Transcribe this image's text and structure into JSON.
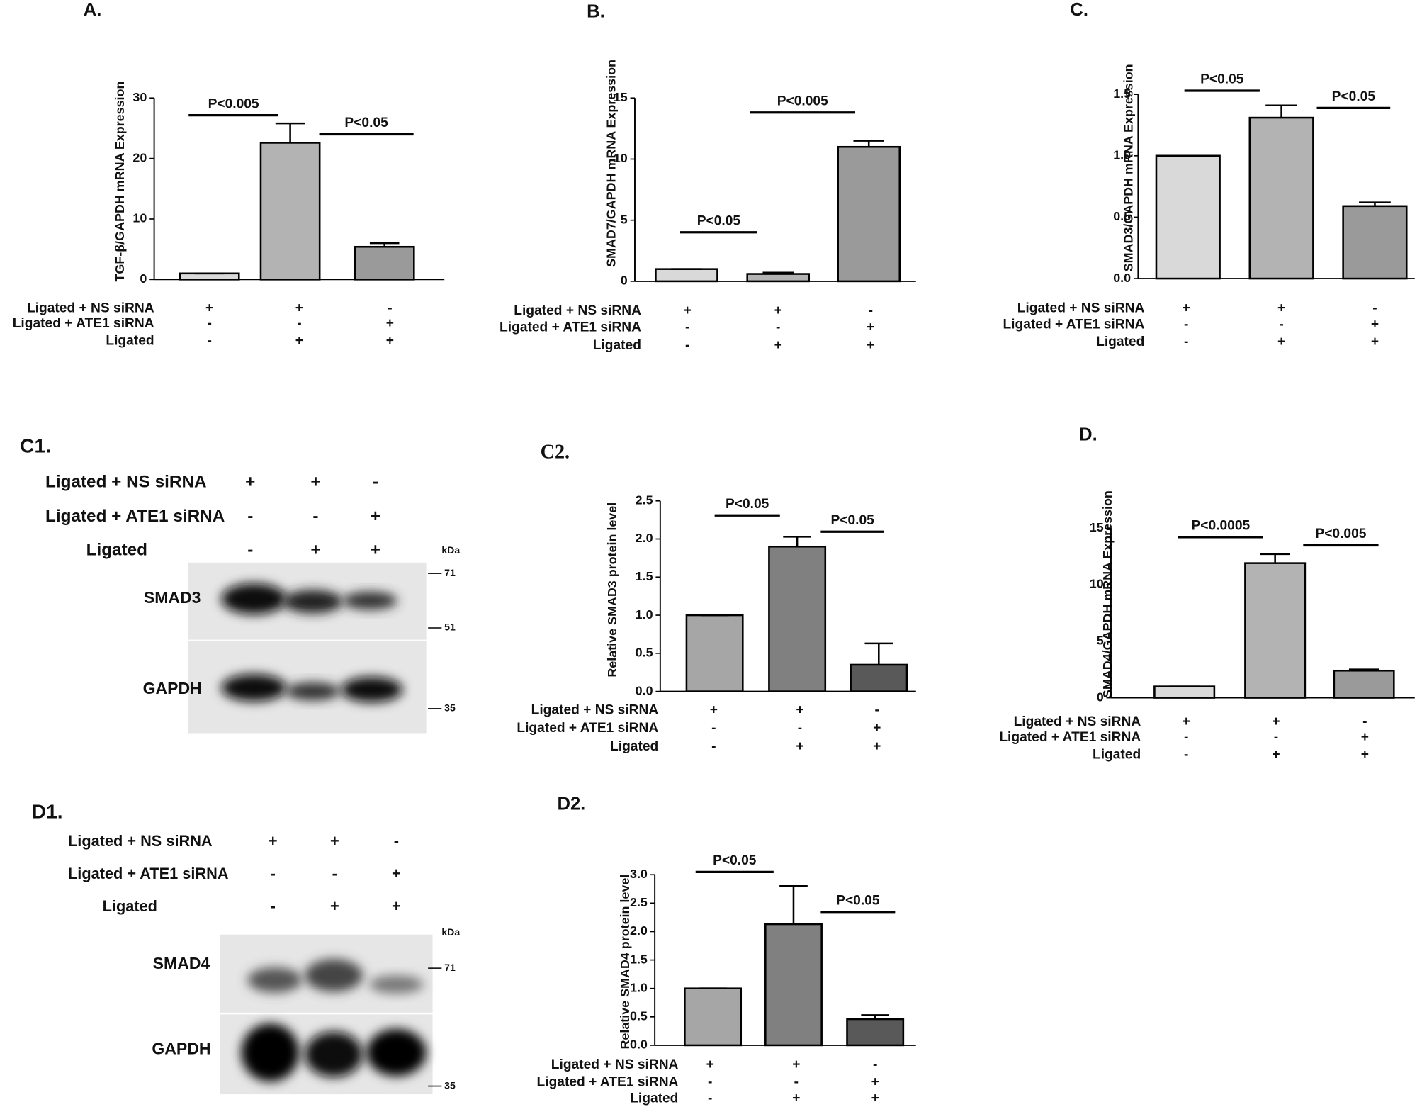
{
  "chart_data": [
    {
      "type": "bar",
      "panel": "A.",
      "ylabel": "TGF-β/GAPDH mRNA Expression",
      "values": [
        1,
        22.6,
        5.4
      ],
      "errors": [
        0,
        3.2,
        0.6
      ],
      "colors": [
        "#d9d9d9",
        "#b3b3b3",
        "#9a9a9a"
      ],
      "ylim": [
        0,
        30
      ],
      "yticks": [
        0,
        10,
        20,
        30
      ],
      "annotations": [
        "P<0.005",
        "P<0.05"
      ],
      "conditions": [
        {
          "label": "Ligated + NS siRNA",
          "marks": [
            "+",
            "+",
            "-"
          ]
        },
        {
          "label": "Ligated + ATE1 siRNA",
          "marks": [
            "-",
            "-",
            "+"
          ]
        },
        {
          "label": "Ligated",
          "marks": [
            "-",
            "+",
            "+"
          ]
        }
      ]
    },
    {
      "type": "bar",
      "panel": "B.",
      "ylabel": "SMAD7/GAPDH mRNA Expression",
      "values": [
        1,
        0.6,
        11
      ],
      "errors": [
        0,
        0.1,
        0.5
      ],
      "colors": [
        "#d9d9d9",
        "#b3b3b3",
        "#9a9a9a"
      ],
      "ylim": [
        0,
        15
      ],
      "yticks": [
        0,
        5,
        10,
        15
      ],
      "annotations": [
        "P<0.05",
        "P<0.005"
      ],
      "conditions": [
        {
          "label": "Ligated + NS siRNA",
          "marks": [
            "+",
            "+",
            "-"
          ]
        },
        {
          "label": "Ligated + ATE1 siRNA",
          "marks": [
            "-",
            "-",
            "+"
          ]
        },
        {
          "label": "Ligated",
          "marks": [
            "-",
            "+",
            "+"
          ]
        }
      ]
    },
    {
      "type": "bar",
      "panel": "C.",
      "ylabel": "SMAD3/GAPDH mRNA Expression",
      "values": [
        1,
        1.31,
        0.59
      ],
      "errors": [
        0,
        0.1,
        0.03
      ],
      "colors": [
        "#d9d9d9",
        "#b3b3b3",
        "#9a9a9a"
      ],
      "ylim": [
        0,
        1.5
      ],
      "yticks": [
        {
          "value": 0,
          "label": "0.0"
        },
        {
          "value": 0.5,
          "label": "0.5"
        },
        {
          "value": 1,
          "label": "1.0"
        },
        {
          "value": 1.5,
          "label": "1.5"
        }
      ],
      "annotations": [
        "P<0.05",
        "P<0.05"
      ],
      "conditions": [
        {
          "label": "Ligated + NS siRNA",
          "marks": [
            "+",
            "+",
            "-"
          ]
        },
        {
          "label": "Ligated + ATE1 siRNA",
          "marks": [
            "-",
            "-",
            "+"
          ]
        },
        {
          "label": "Ligated",
          "marks": [
            "-",
            "+",
            "+"
          ]
        }
      ]
    },
    {
      "type": "bar",
      "panel": "C2.",
      "ylabel": "Relative  SMAD3 protein level",
      "values": [
        1,
        1.9,
        0.35
      ],
      "errors": [
        0,
        0.13,
        0.28
      ],
      "colors": [
        "#a6a6a6",
        "#808080",
        "#595959"
      ],
      "ylim": [
        0,
        2.5
      ],
      "yticks": [
        {
          "value": 0,
          "label": "0.0"
        },
        {
          "value": 0.5,
          "label": "0.5"
        },
        {
          "value": 1,
          "label": "1.0"
        },
        {
          "value": 1.5,
          "label": "1.5"
        },
        {
          "value": 2,
          "label": "2.0"
        },
        {
          "value": 2.5,
          "label": "2.5"
        }
      ],
      "annotations": [
        "P<0.05",
        "P<0.05"
      ],
      "conditions": [
        {
          "label": "Ligated + NS siRNA",
          "marks": [
            "+",
            "+",
            "-"
          ]
        },
        {
          "label": "Ligated + ATE1 siRNA",
          "marks": [
            "-",
            "-",
            "+"
          ]
        },
        {
          "label": "Ligated",
          "marks": [
            "-",
            "+",
            "+"
          ]
        }
      ]
    },
    {
      "type": "bar",
      "panel": "D.",
      "ylabel": "SMAD4/GAPDH mRNA Expression",
      "values": [
        1,
        11.9,
        2.4
      ],
      "errors": [
        0,
        0.8,
        0.1
      ],
      "colors": [
        "#d9d9d9",
        "#b3b3b3",
        "#9a9a9a"
      ],
      "ylim": [
        0,
        15
      ],
      "yticks": [
        0,
        5,
        10,
        15
      ],
      "annotations": [
        "P<0.0005",
        "P<0.005"
      ],
      "conditions": [
        {
          "label": "Ligated + NS siRNA",
          "marks": [
            "+",
            "+",
            "-"
          ]
        },
        {
          "label": "Ligated + ATE1 siRNA",
          "marks": [
            "-",
            "-",
            "+"
          ]
        },
        {
          "label": "Ligated",
          "marks": [
            "-",
            "+",
            "+"
          ]
        }
      ]
    },
    {
      "type": "bar",
      "panel": "D2.",
      "ylabel": "Relative SMAD4 protein level",
      "values": [
        1,
        2.13,
        0.46
      ],
      "errors": [
        0,
        0.67,
        0.07
      ],
      "colors": [
        "#a6a6a6",
        "#808080",
        "#595959"
      ],
      "ylim": [
        0,
        3
      ],
      "yticks": [
        {
          "value": 0,
          "label": "0.0"
        },
        {
          "value": 0.5,
          "label": "0.5"
        },
        {
          "value": 1,
          "label": "1.0"
        },
        {
          "value": 1.5,
          "label": "1.5"
        },
        {
          "value": 2,
          "label": "2.0"
        },
        {
          "value": 2.5,
          "label": "2.5"
        },
        {
          "value": 3,
          "label": "3.0"
        }
      ],
      "annotations": [
        "P<0.05",
        "P<0.05"
      ],
      "conditions": [
        {
          "label": "Ligated + NS siRNA",
          "marks": [
            "+",
            "+",
            "-"
          ]
        },
        {
          "label": "Ligated + ATE1 siRNA",
          "marks": [
            "-",
            "-",
            "+"
          ]
        },
        {
          "label": "Ligated",
          "marks": [
            "-",
            "+",
            "+"
          ]
        }
      ]
    }
  ],
  "blots": [
    {
      "panel": "C1.",
      "conditions": [
        {
          "label": "Ligated + NS siRNA",
          "marks": [
            "+",
            "+",
            "-"
          ]
        },
        {
          "label": "Ligated + ATE1 siRNA",
          "marks": [
            "-",
            "-",
            "+"
          ]
        },
        {
          "label": "Ligated",
          "marks": [
            "-",
            "+",
            "+"
          ]
        }
      ],
      "bands": [
        "SMAD3",
        "GAPDH"
      ],
      "unit": "kDa",
      "markers": [
        "71",
        "51",
        "35"
      ]
    },
    {
      "panel": "D1.",
      "conditions": [
        {
          "label": "Ligated + NS siRNA",
          "marks": [
            "+",
            "+",
            "-"
          ]
        },
        {
          "label": "Ligated + ATE1 siRNA",
          "marks": [
            "-",
            "-",
            "+"
          ]
        },
        {
          "label": "Ligated",
          "marks": [
            "-",
            "+",
            "+"
          ]
        }
      ],
      "bands": [
        "SMAD4",
        "GAPDH"
      ],
      "unit": "kDa",
      "markers": [
        "71",
        "35"
      ]
    }
  ]
}
